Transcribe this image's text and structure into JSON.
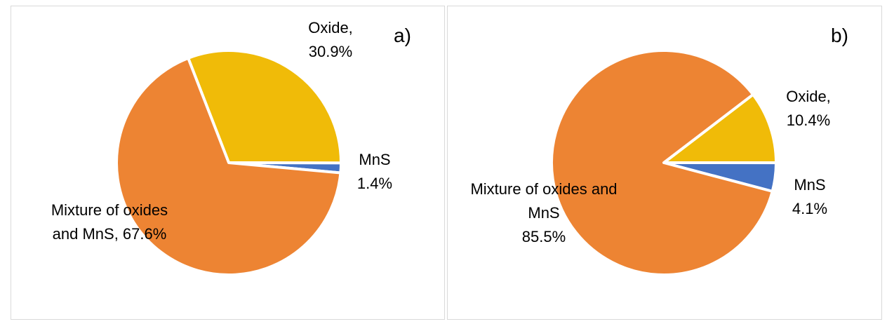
{
  "chart_data": [
    {
      "type": "pie",
      "panel_label": "a)",
      "slices": [
        {
          "name": "Oxide",
          "value": 30.9,
          "color": "#F0BB08",
          "label_line1": "Oxide,",
          "label_line2": "30.9%"
        },
        {
          "name": "MnS",
          "value": 1.4,
          "color": "#4472C4",
          "label_line1": "MnS",
          "label_line2": "1.4%"
        },
        {
          "name": "Mixture of oxides and MnS",
          "value": 67.6,
          "color": "#ED8433",
          "label_line1": "Mixture of oxides",
          "label_line2": "and MnS,  67.6%"
        }
      ]
    },
    {
      "type": "pie",
      "panel_label": "b)",
      "slices": [
        {
          "name": "Oxide",
          "value": 10.4,
          "color": "#F0BB08",
          "label_line1": "Oxide,",
          "label_line2": "10.4%"
        },
        {
          "name": "MnS",
          "value": 4.1,
          "color": "#4472C4",
          "label_line1": "MnS",
          "label_line2": "4.1%"
        },
        {
          "name": "Mixture of oxides and MnS",
          "value": 85.5,
          "color": "#ED8433",
          "label_line1": "Mixture of oxides and",
          "label_line2": "MnS",
          "label_line3": "85.5%"
        }
      ]
    }
  ]
}
